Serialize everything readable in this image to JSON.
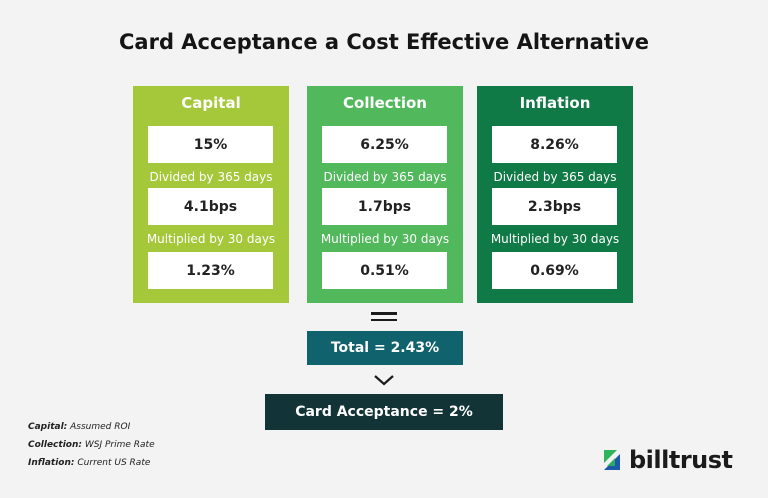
{
  "title": "Card Acceptance a Cost Effective Alternative",
  "columns": [
    {
      "header": "Capital",
      "color": "#a5c83a",
      "rate": "15%",
      "divide_label": "Divided by 365 days",
      "bps": "4.1bps",
      "multiply_label": "Multiplied by 30 days",
      "result": "1.23%"
    },
    {
      "header": "Collection",
      "color": "#51b85c",
      "rate": "6.25%",
      "divide_label": "Divided by 365 days",
      "bps": "1.7bps",
      "multiply_label": "Multiplied by 30 days",
      "result": "0.51%"
    },
    {
      "header": "Inflation",
      "color": "#0f7a45",
      "rate": "8.26%",
      "divide_label": "Divided by 365 days",
      "bps": "2.3bps",
      "multiply_label": "Multiplied by 30 days",
      "result": "0.69%"
    }
  ],
  "total": "Total = 2.43%",
  "card_acceptance": "Card Acceptance = 2%",
  "notes": [
    {
      "term": "Capital:",
      "desc": "Assumed ROI"
    },
    {
      "term": "Collection:",
      "desc": "WSJ Prime Rate"
    },
    {
      "term": "Inflation:",
      "desc": "Current US Rate"
    }
  ],
  "brand": {
    "name": "billtrust",
    "color_green": "#2fb35b",
    "color_blue": "#1a5aa8"
  },
  "colors": {
    "total_bg": "#10636c",
    "result_bg": "#133437"
  }
}
